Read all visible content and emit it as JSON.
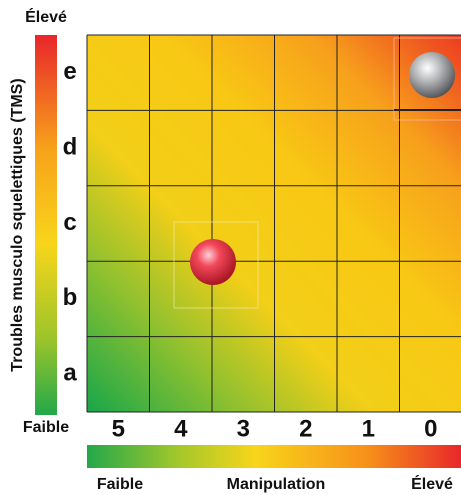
{
  "y_axis": {
    "label": "Troubles musculo squelettiques (TMS)",
    "high": "Élevé",
    "low": "Faible",
    "levels": [
      "e",
      "d",
      "c",
      "b",
      "a"
    ]
  },
  "x_axis": {
    "label": "Manipulation",
    "low": "Faible",
    "high": "Élevé",
    "levels": [
      "5",
      "4",
      "3",
      "2",
      "1",
      "0"
    ]
  }
}
